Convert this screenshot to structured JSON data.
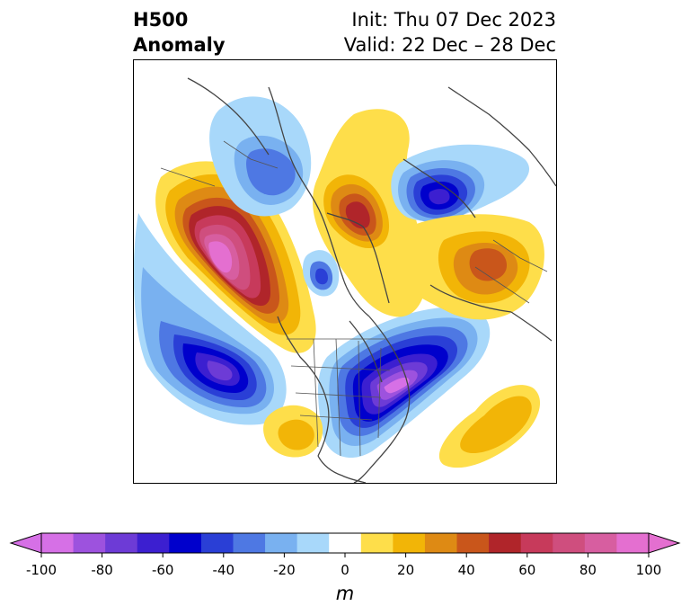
{
  "header": {
    "title_line1": "H500",
    "title_line2": "Anomaly",
    "init_text": "Init: Thu 07 Dec 2023",
    "valid_text": "Valid: 22 Dec – 28 Dec"
  },
  "colorbar": {
    "unit": "m",
    "ticks": [
      "-100",
      "-80",
      "-60",
      "-40",
      "-20",
      "0",
      "20",
      "40",
      "60",
      "80",
      "100"
    ],
    "levels": [
      -100,
      -90,
      -80,
      -70,
      -60,
      -50,
      -40,
      -30,
      -20,
      -10,
      10,
      20,
      30,
      40,
      50,
      60,
      70,
      80,
      90,
      100
    ],
    "colors": [
      "#d670e6",
      "#9d52de",
      "#6d3bd6",
      "#3c1fd0",
      "#0000cc",
      "#2a3fd6",
      "#4e78e3",
      "#79b1f0",
      "#a8d8fa",
      "#ffffff",
      "#fede4a",
      "#f2b507",
      "#de8a14",
      "#c9561b",
      "#b0252a",
      "#c73a5b",
      "#cf4e7e",
      "#d75ea0",
      "#e46fd0"
    ],
    "under_color": "#d670e6",
    "over_color": "#e46fd0"
  },
  "map": {
    "projection": "polar-stereographic",
    "anomalies": [
      {
        "name": "ne-pacific-ridge",
        "sign": "positive",
        "peak": 100
      },
      {
        "name": "central-pacific-trough",
        "sign": "negative",
        "peak": -70
      },
      {
        "name": "eastern-us-trough",
        "sign": "negative",
        "peak": -100
      },
      {
        "name": "hudson-bay-ridge",
        "sign": "positive",
        "peak": 60
      },
      {
        "name": "baffin-trough",
        "sign": "negative",
        "peak": -60
      },
      {
        "name": "siberia-trough",
        "sign": "negative",
        "peak": -40
      },
      {
        "name": "greenland-ridge",
        "sign": "positive",
        "peak": 50
      },
      {
        "name": "atlantic-ridge",
        "sign": "positive",
        "peak": 30
      },
      {
        "name": "mexico-ridge",
        "sign": "positive",
        "peak": 20
      }
    ]
  }
}
